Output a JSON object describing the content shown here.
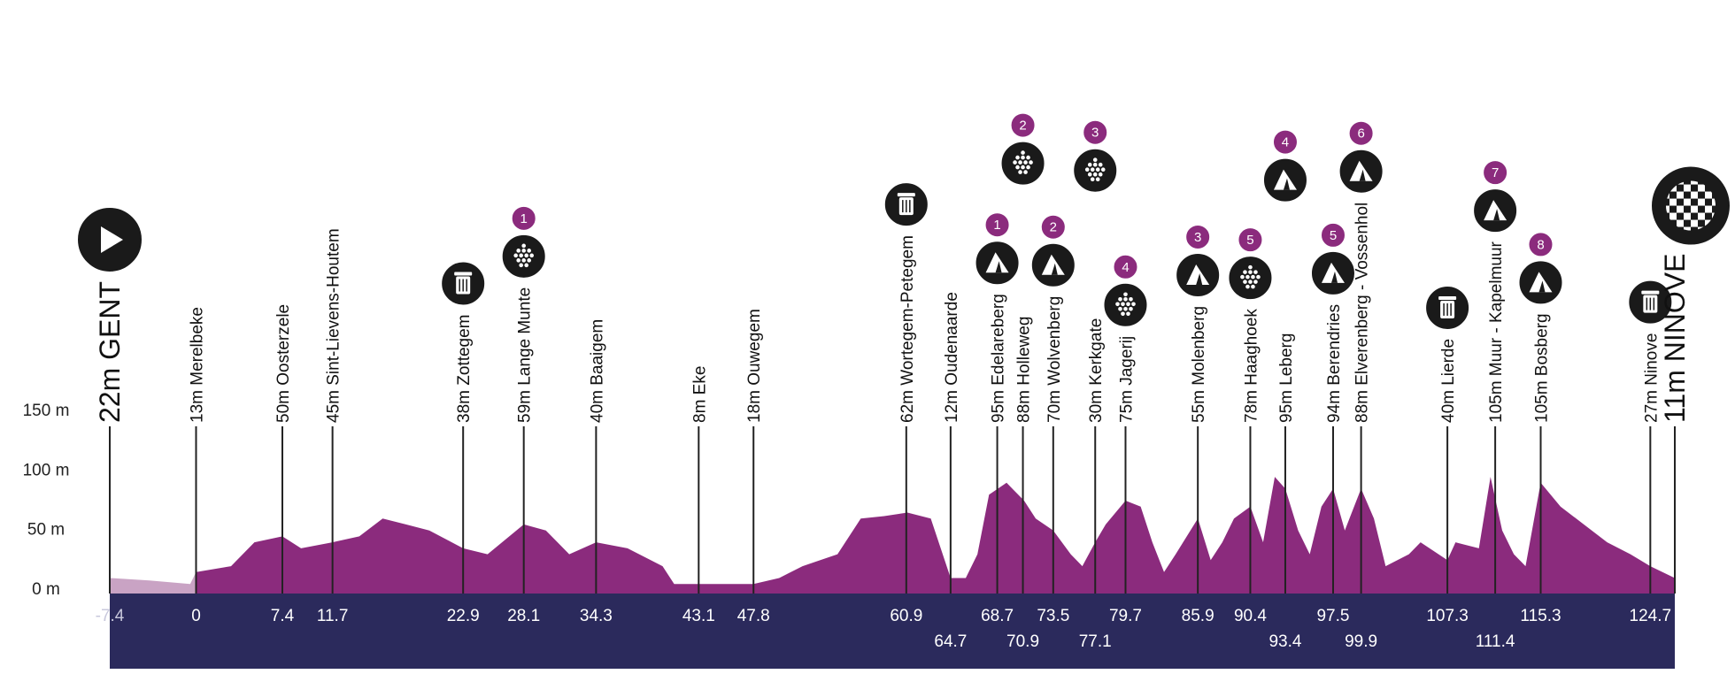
{
  "chart_data": {
    "type": "profile",
    "xlim": [
      -7.4,
      126.8
    ],
    "ylim": [
      0,
      150
    ],
    "yticks": [
      {
        "value": 0,
        "label": "0 m"
      },
      {
        "value": 50,
        "label": "50 m"
      },
      {
        "value": 100,
        "label": "100 m"
      },
      {
        "value": 150,
        "label": "150 m"
      }
    ],
    "grid": false,
    "band_color": "#2b2a5c",
    "profile": {
      "color": "#8b2b7d",
      "neutral_color": "#c9a3c4",
      "x": [
        -7.4,
        -4,
        -0.5,
        0,
        3,
        5,
        7.4,
        9,
        11.7,
        14,
        16,
        18,
        20,
        22.9,
        25,
        28.1,
        30,
        32,
        34.3,
        37,
        40,
        41,
        43.1,
        47.8,
        50,
        52,
        55,
        57,
        59,
        61,
        63,
        64.7,
        66,
        67,
        68,
        69.5,
        71,
        72,
        73.5,
        75,
        76,
        77.1,
        78,
        79.7,
        81,
        82,
        83,
        84,
        85.9,
        87,
        88,
        89,
        90.4,
        91.5,
        92.5,
        93.4,
        94.5,
        95.5,
        96.5,
        97.5,
        98.5,
        99.9,
        101,
        102,
        104,
        105,
        107.3,
        108,
        110,
        111,
        112,
        113,
        114,
        115.3,
        117,
        119,
        121,
        123,
        124.7,
        126.8
      ],
      "values": [
        10,
        8,
        5,
        15,
        20,
        40,
        45,
        35,
        40,
        45,
        60,
        55,
        50,
        35,
        30,
        55,
        50,
        30,
        40,
        35,
        20,
        5,
        5,
        5,
        10,
        20,
        30,
        60,
        62,
        65,
        60,
        10,
        10,
        30,
        80,
        90,
        75,
        60,
        50,
        30,
        20,
        40,
        55,
        75,
        70,
        40,
        15,
        30,
        60,
        25,
        40,
        60,
        70,
        40,
        95,
        85,
        50,
        30,
        70,
        85,
        50,
        85,
        60,
        20,
        30,
        40,
        25,
        40,
        35,
        95,
        50,
        30,
        20,
        90,
        70,
        55,
        40,
        30,
        20,
        10
      ]
    },
    "waypoints": [
      {
        "km": -7.4,
        "label": "22m GENT",
        "icon": "start"
      },
      {
        "km": 0,
        "label": "13m Merelbeke"
      },
      {
        "km": 7.4,
        "label": "50m Oosterzele"
      },
      {
        "km": 11.7,
        "label": "45m Sint-Lievens-Houtem"
      },
      {
        "km": 22.9,
        "label": "38m Zottegem",
        "icon": "feed"
      },
      {
        "km": 28.1,
        "label": "59m Lange Munte",
        "icon": "cobbles",
        "badge": 1
      },
      {
        "km": 34.3,
        "label": "40m Baaigem"
      },
      {
        "km": 43.1,
        "label": "8m Eke"
      },
      {
        "km": 47.8,
        "label": "18m Ouwegem"
      },
      {
        "km": 60.9,
        "label": "62m Wortegem-Petegem",
        "icon": "feed"
      },
      {
        "km": 64.7,
        "label": "12m Oudenaarde"
      },
      {
        "km": 68.7,
        "label": "95m Edelareberg",
        "icon": "climb",
        "badge": 1
      },
      {
        "km": 70.9,
        "label": "88m Holleweg",
        "icon": "cobbles",
        "badge": 2
      },
      {
        "km": 73.5,
        "label": "70m Wolvenberg",
        "icon": "climb",
        "badge": 2
      },
      {
        "km": 77.1,
        "label": "30m Kerkgate",
        "icon": "cobbles",
        "badge": 3
      },
      {
        "km": 79.7,
        "label": "75m Jagerij",
        "icon": "cobbles",
        "badge": 4
      },
      {
        "km": 85.9,
        "label": "55m Molenberg",
        "icon": "climb",
        "badge": 3
      },
      {
        "km": 90.4,
        "label": "78m Haaghoek",
        "icon": "cobbles",
        "badge": 5
      },
      {
        "km": 93.4,
        "label": "95m Leberg",
        "icon": "climb",
        "badge": 4
      },
      {
        "km": 97.5,
        "label": "94m Berendries",
        "icon": "climb",
        "badge": 5
      },
      {
        "km": 99.9,
        "label": "88m Elverenberg - Vossenhol",
        "icon": "climb",
        "badge": 6
      },
      {
        "km": 107.3,
        "label": "40m Lierde",
        "icon": "feed"
      },
      {
        "km": 111.4,
        "label": "105m Muur - Kapelmuur",
        "icon": "climb",
        "badge": 7
      },
      {
        "km": 115.3,
        "label": "105m Bosberg",
        "icon": "climb",
        "badge": 8
      },
      {
        "km": 124.7,
        "label": "27m Ninove",
        "icon": "feed"
      },
      {
        "label": "11m NINOVE",
        "icon": "finish"
      }
    ]
  }
}
